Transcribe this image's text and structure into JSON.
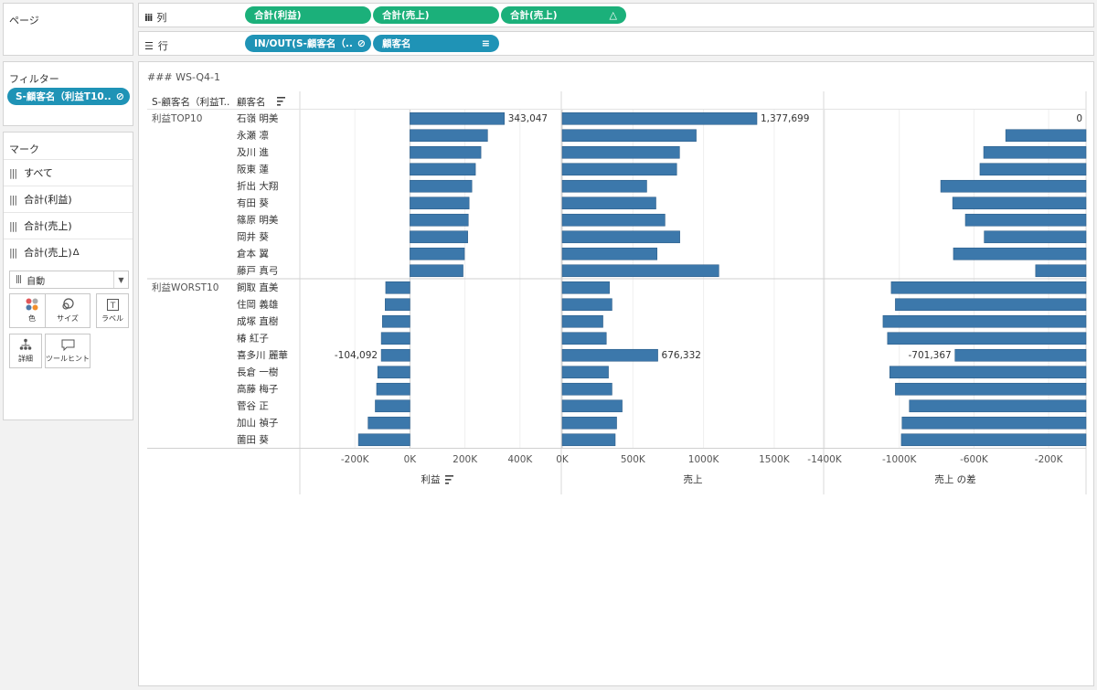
{
  "pages": {
    "title": "ページ"
  },
  "columns_shelf": {
    "label": "列",
    "icon": "columns-icon",
    "pills": [
      {
        "label": "合計(利益)",
        "color": "#1bb07a"
      },
      {
        "label": "合計(売上)",
        "color": "#1bb07a"
      },
      {
        "label": "合計(売上)",
        "color": "#1bb07a",
        "icon": "delta-icon"
      }
    ]
  },
  "rows_shelf": {
    "label": "行",
    "icon": "rows-icon",
    "pills": [
      {
        "label": "IN/OUT(S-顧客名（..",
        "color": "#1f93b6",
        "icon": "set-icon"
      },
      {
        "label": "顧客名",
        "color": "#1f93b6",
        "icon": "sort-icon"
      }
    ]
  },
  "filters": {
    "title": "フィルター",
    "pill": "S-顧客名（利益T10.."
  },
  "marks": {
    "title": "マーク",
    "rows": [
      "すべて",
      "合計(利益)",
      "合計(売上)",
      "合計(売上)"
    ],
    "last_row_suffix": "Δ",
    "type": "自動",
    "buttons": [
      "色",
      "サイズ",
      "ラベル",
      "詳細",
      "ツールヒント"
    ]
  },
  "sheet": {
    "title": "### WS-Q4-1",
    "header_col1": "S-顧客名（利益T..",
    "header_col2": "顧客名"
  },
  "chart_data": {
    "type": "bar",
    "groups": [
      {
        "name": "利益TOP10",
        "customers": [
          "石嶺 明美",
          "永瀬 凛",
          "及川 進",
          "阪東 蓮",
          "折出 大翔",
          "有田 葵",
          "篠原 明美",
          "岡井 葵",
          "倉本 翼",
          "藤戸 真弓"
        ]
      },
      {
        "name": "利益WORST10",
        "customers": [
          "飼取 直美",
          "住岡 義雄",
          "成塚 直樹",
          "椿 紅子",
          "喜多川 麗華",
          "長倉 一樹",
          "高藤 梅子",
          "菅谷 正",
          "加山 禎子",
          "薗田 葵"
        ]
      }
    ],
    "series": [
      {
        "name": "利益",
        "axis_label": "利益",
        "ticks": [
          -200000,
          0,
          200000,
          400000
        ],
        "tick_labels": [
          "-200K",
          "0K",
          "200K",
          "400K"
        ],
        "xlim": [
          -400000,
          550000
        ],
        "values": [
          343047,
          282000,
          258000,
          238000,
          225000,
          215000,
          212000,
          210000,
          198000,
          193000,
          -88000,
          -90000,
          -100000,
          -104000,
          -104092,
          -117000,
          -121000,
          -126000,
          -152000,
          -187000
        ],
        "labels": {
          "0": "343,047",
          "14": "-104,092"
        }
      },
      {
        "name": "売上",
        "axis_label": "売上",
        "ticks": [
          0,
          500000,
          1000000,
          1500000
        ],
        "tick_labels": [
          "0K",
          "500K",
          "1000K",
          "1500K"
        ],
        "xlim": [
          0,
          1850000
        ],
        "values": [
          1377699,
          948000,
          830000,
          810000,
          598000,
          663000,
          727000,
          832000,
          671000,
          1108000,
          334000,
          352000,
          288000,
          312000,
          676332,
          327000,
          352000,
          424000,
          385000,
          375000
        ],
        "labels": {
          "0": "1,377,699",
          "14": "676,332"
        }
      },
      {
        "name": "売上 の差",
        "axis_label": "売上 の差",
        "ticks": [
          -1400000,
          -1000000,
          -600000,
          -200000
        ],
        "tick_labels": [
          "-1400K",
          "-1000K",
          "-600K",
          "-200K"
        ],
        "xlim": [
          -1400000,
          0
        ],
        "values": [
          0,
          -430000,
          -548000,
          -568000,
          -778000,
          -714000,
          -646000,
          -545000,
          -710000,
          -270000,
          -1043000,
          -1021000,
          -1087000,
          -1063000,
          -701367,
          -1051000,
          -1021000,
          -946000,
          -985000,
          -989000
        ],
        "labels": {
          "0": "0",
          "14": "-701,367"
        }
      }
    ],
    "bar_color": "#3c78ab"
  }
}
